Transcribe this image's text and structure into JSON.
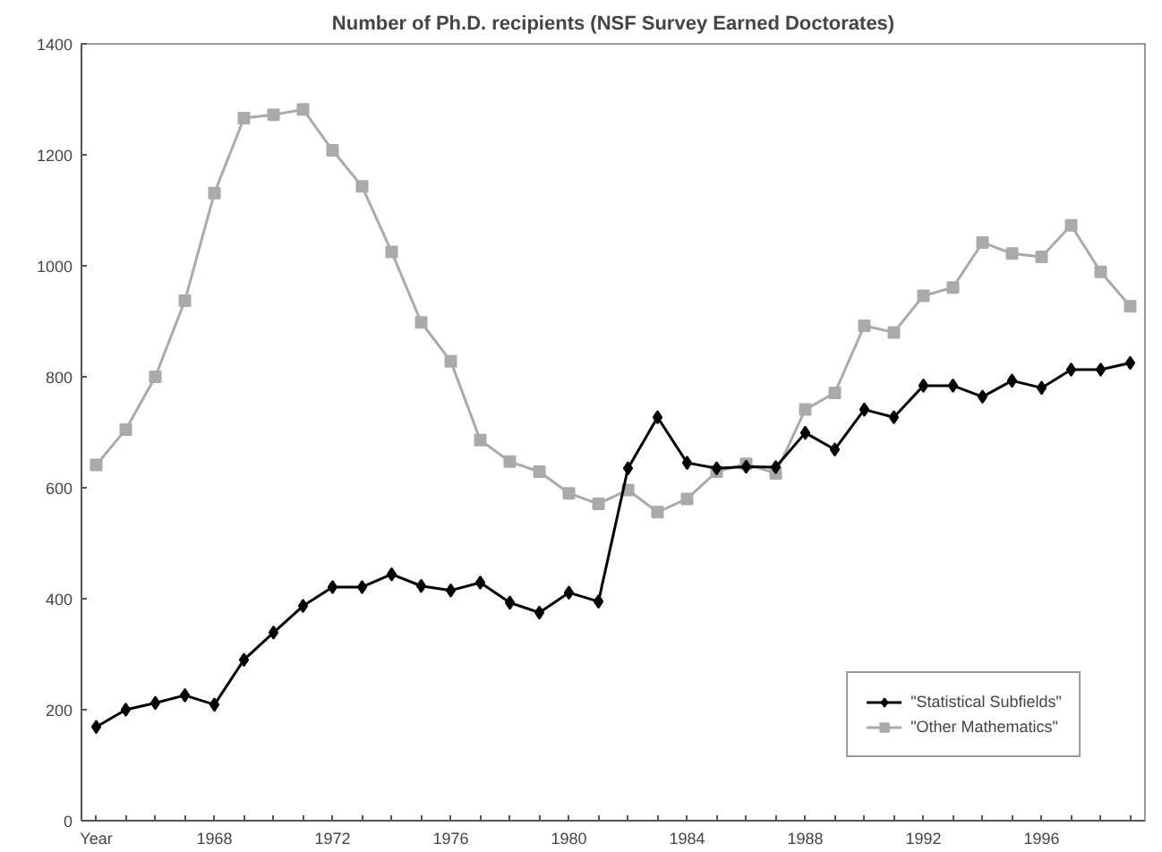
{
  "chart_data": {
    "type": "line",
    "title": "Number of Ph.D. recipients (NSF Survey Earned Doctorates)",
    "categories": [
      "Year",
      null,
      null,
      null,
      "1968",
      null,
      null,
      null,
      "1972",
      null,
      null,
      null,
      "1976",
      null,
      null,
      null,
      "1980",
      null,
      null,
      null,
      "1984",
      null,
      null,
      null,
      "1988",
      null,
      null,
      null,
      "1992",
      null,
      null,
      null,
      "1996",
      null,
      null,
      null
    ],
    "series": [
      {
        "name": "\"Statistical Subfields\"",
        "color": "#000000",
        "marker": "diamond",
        "values": [
          169,
          200,
          212,
          226,
          209,
          290,
          339,
          387,
          421,
          421,
          444,
          423,
          415,
          429,
          393,
          375,
          411,
          395,
          635,
          727,
          645,
          635,
          638,
          637,
          699,
          669,
          741,
          727,
          784,
          784,
          764,
          793,
          780,
          813,
          813,
          825
        ]
      },
      {
        "name": "\"Other Mathematics\"",
        "color": "#aaaaaa",
        "marker": "square",
        "values": [
          641,
          705,
          800,
          937,
          1131,
          1266,
          1272,
          1282,
          1208,
          1143,
          1025,
          898,
          828,
          686,
          647,
          629,
          590,
          571,
          596,
          556,
          580,
          629,
          643,
          626,
          741,
          771,
          892,
          880,
          946,
          961,
          1042,
          1022,
          1016,
          1073,
          989,
          927
        ]
      }
    ],
    "ylim": [
      0,
      1400
    ],
    "yticks": [
      0,
      200,
      400,
      600,
      800,
      1000,
      1200,
      1400
    ],
    "grid": false,
    "legend": "bottom right",
    "line_style": "solid"
  }
}
